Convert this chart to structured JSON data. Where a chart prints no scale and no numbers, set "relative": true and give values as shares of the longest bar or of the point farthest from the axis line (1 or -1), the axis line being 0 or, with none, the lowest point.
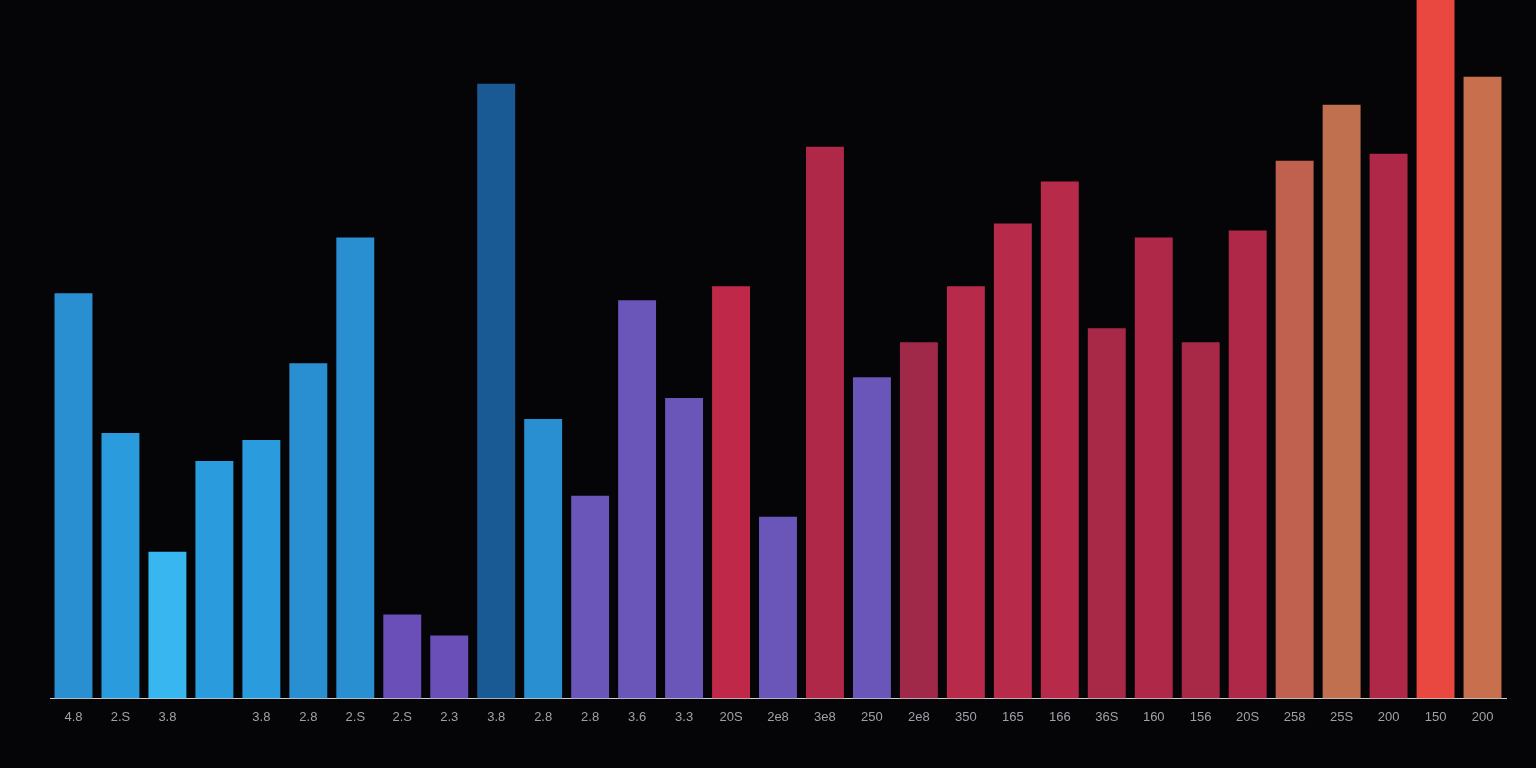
{
  "chart_data": {
    "type": "bar",
    "relative": true,
    "categories": [
      "4.8",
      "2.S",
      "3.8",
      null,
      "3.8",
      "2.8",
      "2.S",
      "2.S",
      "2.3",
      "3.8",
      "2.8",
      "2.8",
      "3.6",
      "3.3",
      "20S",
      "2e8",
      "3e8",
      "250",
      "2e8",
      "350",
      "165",
      "166",
      "36S",
      "160",
      "156",
      "20S",
      "258",
      "25S",
      "200",
      "150",
      "200"
    ],
    "values": [
      0.58,
      0.38,
      0.21,
      0.34,
      0.37,
      0.48,
      0.66,
      0.12,
      0.09,
      0.88,
      0.4,
      0.29,
      0.57,
      0.43,
      0.59,
      0.26,
      0.79,
      0.46,
      0.51,
      0.59,
      0.68,
      0.74,
      0.53,
      0.66,
      0.51,
      0.67,
      0.77,
      0.85,
      0.78,
      1,
      0.89
    ],
    "colors": [
      "#2a8fd0",
      "#2a9bdc",
      "#38b6f0",
      "#2a9bdc",
      "#2a9bdc",
      "#2a8fd0",
      "#2a8fd0",
      "#6a4fb8",
      "#6a4fb8",
      "#1a5a94",
      "#2a8fd0",
      "#6a55b8",
      "#6a55b8",
      "#6a55b8",
      "#c0284a",
      "#6a55b8",
      "#b02848",
      "#6a55b8",
      "#a02848",
      "#b82a4a",
      "#b82a4a",
      "#b82a4a",
      "#a82848",
      "#b02848",
      "#a82848",
      "#b02848",
      "#c0604e",
      "#c0704e",
      "#b02848",
      "#e84840",
      "#c8704e"
    ],
    "legend": false
  }
}
